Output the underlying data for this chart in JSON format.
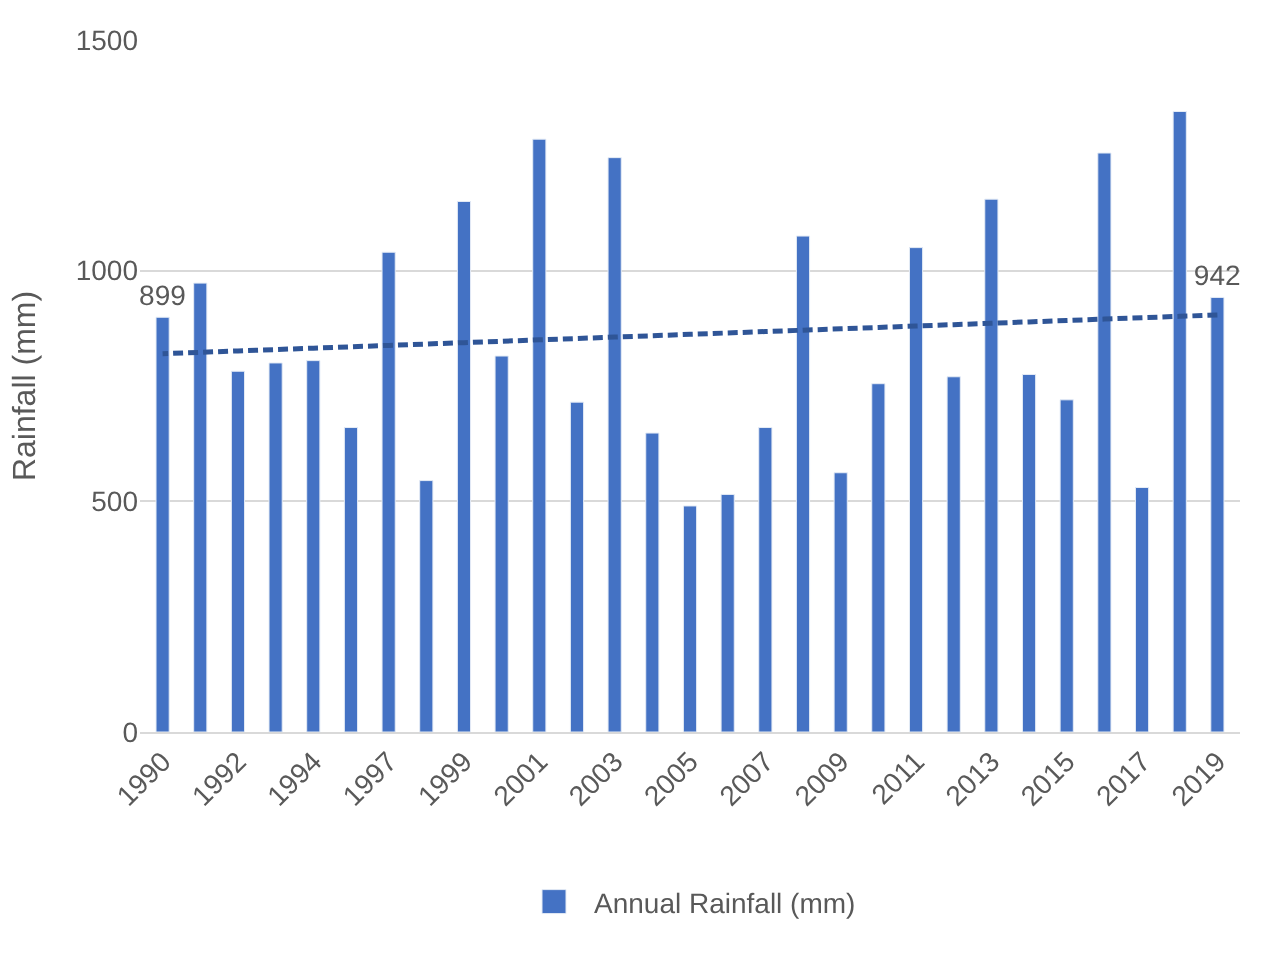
{
  "chart_data": {
    "type": "bar",
    "ylabel": "Rainfall (mm)",
    "categories": [
      "1990",
      null,
      "1992",
      null,
      "1994",
      null,
      "1997",
      null,
      "1999",
      null,
      "2001",
      null,
      "2003",
      null,
      "2005",
      null,
      "2007",
      null,
      "2009",
      null,
      "2011",
      null,
      "2013",
      null,
      "2015",
      null,
      "2017",
      null,
      "2019"
    ],
    "series": [
      {
        "name": "Annual Rainfall (mm)",
        "color": "#4472c4",
        "values": [
          899,
          973,
          782,
          800,
          805,
          660,
          1040,
          545,
          1150,
          815,
          1285,
          715,
          1245,
          648,
          490,
          515,
          660,
          1075,
          562,
          755,
          1050,
          770,
          1155,
          775,
          720,
          1255,
          530,
          1345,
          942
        ],
        "value_labels": [
          "899",
          null,
          null,
          null,
          null,
          null,
          null,
          null,
          null,
          null,
          null,
          null,
          null,
          null,
          null,
          null,
          null,
          null,
          null,
          null,
          null,
          null,
          null,
          null,
          null,
          null,
          null,
          null,
          "942"
        ]
      },
      {
        "type": "line",
        "color": "#2f5597",
        "line_style": "dotted",
        "marker": "none",
        "values": [
          820,
          823,
          826,
          829,
          832,
          835,
          838,
          841,
          844,
          847,
          850,
          853,
          856,
          859,
          862,
          865,
          868,
          871,
          874,
          877,
          880,
          883,
          886,
          889,
          892,
          895,
          898,
          901,
          904
        ]
      }
    ],
    "ylim": [
      0,
      1500
    ],
    "yticks": [
      0,
      500,
      1000,
      1500
    ],
    "grid": "y",
    "legend": "bottom"
  }
}
